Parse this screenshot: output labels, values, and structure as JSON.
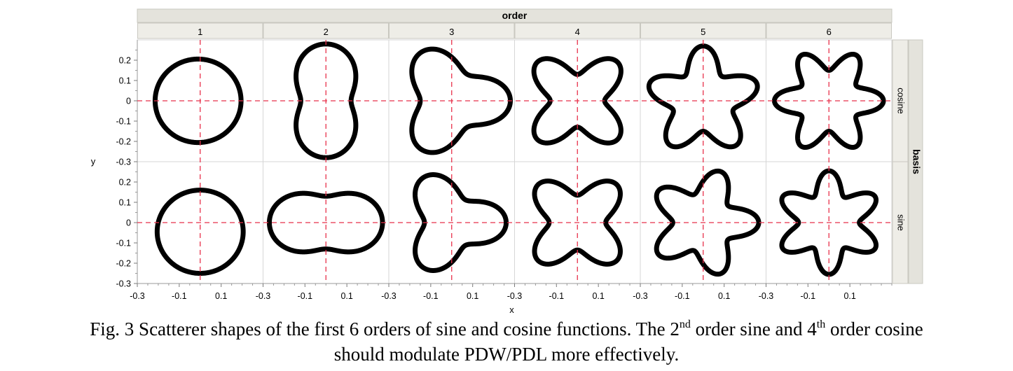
{
  "figure": {
    "caption": {
      "line1_a": "Fig. 3 Scatterer shapes of the first 6 orders of sine and cosine functions.  The 2",
      "sup1": "nd",
      "line1_b": " order sine and 4",
      "sup2": "th",
      "line1_c": " order cosine",
      "line2": "should modulate PDW/PDL more effectively."
    }
  },
  "chart_data": {
    "type": "scatter",
    "column_group_label": "order",
    "row_group_label": "basis",
    "columns": [
      "1",
      "2",
      "3",
      "4",
      "5",
      "6"
    ],
    "rows": [
      "cosine",
      "sine"
    ],
    "xlabel": "x",
    "ylabel": "y",
    "xlim": [
      -0.3,
      0.3
    ],
    "ylim": [
      -0.3,
      0.3
    ],
    "x_tick_labels": [
      "-0.3",
      "-0.1",
      "0.1"
    ],
    "y_tick_labels": [
      "0.2",
      "0.1",
      "0",
      "-0.1",
      "-0.2",
      "-0.3"
    ],
    "y_tick_values": [
      0.2,
      0.1,
      0,
      -0.1,
      -0.2,
      -0.3
    ],
    "x_tick_values": [
      -0.3,
      -0.1,
      0.1
    ],
    "reference_lines": {
      "x": 0,
      "y": 0,
      "color": "#e8314b",
      "style": "dashed"
    },
    "marker_color": "#000000",
    "shape_model": "closed curve r(theta) = r0 + a*basis(n*(theta - phi)), x = r cos(theta), y = r sin(theta)",
    "panels": [
      {
        "basis": "cosine",
        "order": 1,
        "r0": 0.205,
        "a": 0.015,
        "phase_deg": 0,
        "cx": -0.025,
        "cy": 0.0
      },
      {
        "basis": "cosine",
        "order": 2,
        "r0": 0.2,
        "a": -0.08,
        "phase_deg": 0,
        "cx": 0.0,
        "cy": 0.0
      },
      {
        "basis": "cosine",
        "order": 3,
        "r0": 0.215,
        "a": 0.065,
        "phase_deg": 0,
        "cx": 0.0,
        "cy": 0.0
      },
      {
        "basis": "cosine",
        "order": 4,
        "r0": 0.2,
        "a": 0.07,
        "phase_deg": 45,
        "cx": 0.0,
        "cy": 0.0
      },
      {
        "basis": "cosine",
        "order": 5,
        "r0": 0.21,
        "a": 0.06,
        "phase_deg": 18,
        "cx": 0.0,
        "cy": 0.0
      },
      {
        "basis": "cosine",
        "order": 6,
        "r0": 0.205,
        "a": 0.055,
        "phase_deg": 0,
        "cx": 0.0,
        "cy": 0.0
      },
      {
        "basis": "sine",
        "order": 1,
        "r0": 0.205,
        "a": 0.01,
        "phase_deg": 0,
        "cx": 0.0,
        "cy": -0.055
      },
      {
        "basis": "sine",
        "order": 2,
        "r0": 0.2,
        "a": 0.07,
        "phase_deg": -45,
        "cx": 0.0,
        "cy": 0.0
      },
      {
        "basis": "sine",
        "order": 3,
        "r0": 0.195,
        "a": 0.065,
        "phase_deg": 90,
        "cx": 0.0,
        "cy": 0.0
      },
      {
        "basis": "sine",
        "order": 4,
        "r0": 0.2,
        "a": 0.065,
        "phase_deg": 22.5,
        "cx": 0.0,
        "cy": 0.0
      },
      {
        "basis": "sine",
        "order": 5,
        "r0": 0.205,
        "a": 0.06,
        "phase_deg": 54,
        "cx": 0.0,
        "cy": 0.0
      },
      {
        "basis": "sine",
        "order": 6,
        "r0": 0.2,
        "a": 0.055,
        "phase_deg": 15,
        "cx": 0.0,
        "cy": 0.0
      }
    ]
  }
}
